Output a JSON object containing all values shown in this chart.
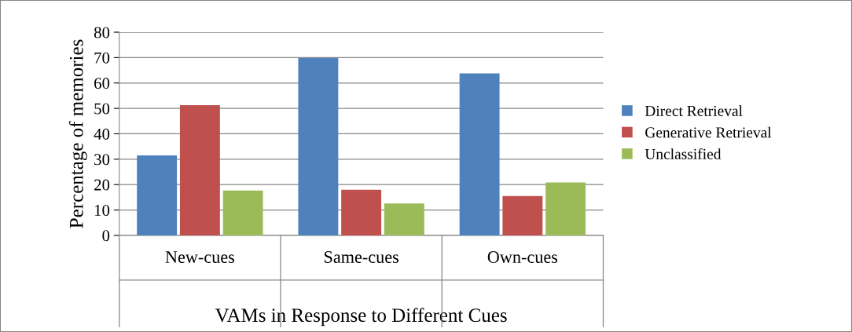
{
  "chart_data": {
    "type": "bar",
    "xlabel": "VAMs in Response to Different Cues",
    "ylabel": "Percentage of memories",
    "categories": [
      "New-cues",
      "Same-cues",
      "Own-cues"
    ],
    "series": [
      {
        "name": "Direct Retrieval",
        "color": "#4f81bd",
        "values": [
          31.5,
          69.8,
          63.8
        ]
      },
      {
        "name": "Generative Retrieval",
        "color": "#c0504d",
        "values": [
          51.3,
          18,
          15.5
        ]
      },
      {
        "name": "Unclassified",
        "color": "#9bbb59",
        "values": [
          17.7,
          12.6,
          20.8
        ]
      }
    ],
    "ylim": [
      0,
      80
    ],
    "yticks": [
      0,
      10,
      20,
      30,
      40,
      50,
      60,
      70,
      80
    ],
    "grid": "y",
    "legend": "right"
  }
}
